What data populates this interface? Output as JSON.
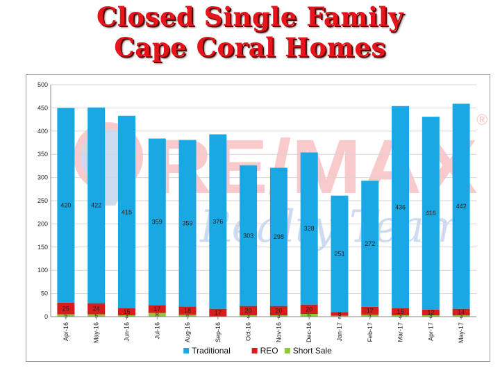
{
  "title": {
    "line1": "Closed Single Family",
    "line2": "Cape Coral Homes"
  },
  "watermark": {
    "brand": "RE/MAX",
    "registered": "®",
    "script": "Realty Team"
  },
  "colors": {
    "title": "#e8141b",
    "traditional": "#1aa8e4",
    "reo": "#d71c1c",
    "short_sale": "#8cc83c"
  },
  "chart_data": {
    "type": "bar",
    "stacked": true,
    "categories": [
      "Apr-16",
      "May-16",
      "Jun-16",
      "Jul-16",
      "Aug-16",
      "Sep-16",
      "Oct-16",
      "Nov-16",
      "Dec-16",
      "Jan-17",
      "Feb-17",
      "Mar-17",
      "Apr-17",
      "May-17"
    ],
    "series": [
      {
        "name": "Short Sale",
        "values": [
          5,
          5,
          3,
          8,
          4,
          0,
          3,
          3,
          6,
          2,
          4,
          3,
          3,
          3
        ],
        "labels": [
          "5",
          "5",
          "3",
          "8",
          "4",
          "",
          "3",
          "3",
          "6",
          "2",
          "4",
          "3",
          "3",
          "3"
        ]
      },
      {
        "name": "REO",
        "values": [
          25,
          24,
          15,
          17,
          18,
          17,
          20,
          20,
          20,
          8,
          17,
          15,
          12,
          14
        ],
        "labels": [
          "25",
          "24",
          "15",
          "17",
          "18",
          "17",
          "20",
          "20",
          "20",
          "8",
          "17",
          "15",
          "12",
          "14"
        ]
      },
      {
        "name": "Traditional",
        "values": [
          420,
          422,
          415,
          359,
          359,
          376,
          303,
          298,
          328,
          251,
          272,
          436,
          416,
          442
        ],
        "labels": [
          "420",
          "422",
          "415",
          "359",
          "359",
          "376",
          "303",
          "298",
          "328",
          "251",
          "272",
          "436",
          "416",
          "442"
        ]
      }
    ],
    "y_ticks": [
      "0",
      "50",
      "100",
      "150",
      "200",
      "250",
      "300",
      "350",
      "400",
      "450",
      "500"
    ],
    "ylim": [
      0,
      500
    ],
    "grid": true,
    "legend": "bottom",
    "legend_entries": [
      "Traditional",
      "REO",
      "Short Sale"
    ]
  }
}
